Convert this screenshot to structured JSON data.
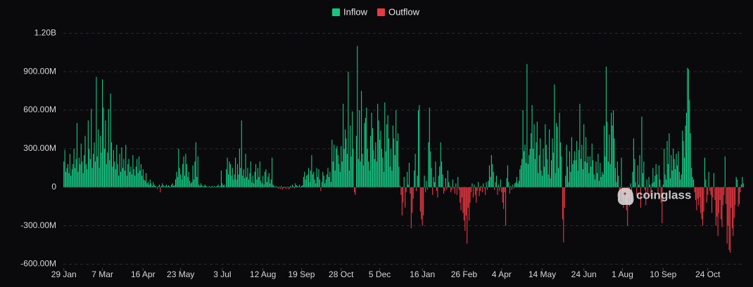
{
  "chart_data": {
    "type": "bar",
    "legend": [
      {
        "name": "Inflow",
        "color": "#16c784"
      },
      {
        "name": "Outflow",
        "color": "#ea3943"
      }
    ],
    "watermark": "coinglass",
    "ylim": [
      -630,
      1240
    ],
    "yticks": [
      {
        "value": -600,
        "label": "-600.00M"
      },
      {
        "value": -300,
        "label": "-300.00M"
      },
      0,
      {
        "value": 300,
        "label": "300.00M"
      },
      {
        "value": 600,
        "label": "600.00M"
      },
      {
        "value": 900,
        "label": "900.00M"
      },
      {
        "value": 1200,
        "label": "1.20B"
      }
    ],
    "grid": true,
    "xlim": [
      -0.5,
      669.5
    ],
    "xticks": [
      {
        "value": 0,
        "label": "29 Jan"
      },
      {
        "value": 38,
        "label": "7 Mar"
      },
      {
        "value": 78,
        "label": "16 Apr"
      },
      {
        "value": 115,
        "label": "23 May"
      },
      {
        "value": 156,
        "label": "3 Jul"
      },
      {
        "value": 196,
        "label": "12 Aug"
      },
      {
        "value": 234,
        "label": "19 Sep"
      },
      {
        "value": 273,
        "label": "28 Oct"
      },
      {
        "value": 311,
        "label": "5 Dec"
      },
      {
        "value": 353,
        "label": "16 Jan"
      },
      {
        "value": 394,
        "label": "26 Feb"
      },
      {
        "value": 431,
        "label": "4 Apr"
      },
      {
        "value": 471,
        "label": "14 May"
      },
      {
        "value": 512,
        "label": "24 Jun"
      },
      {
        "value": 550,
        "label": "1 Aug"
      },
      {
        "value": 590,
        "label": "10 Sep"
      },
      {
        "value": 634,
        "label": "24 Oct"
      }
    ],
    "values": [
      200,
      290,
      120,
      150,
      180,
      110,
      260,
      90,
      140,
      180,
      300,
      150,
      220,
      500,
      120,
      230,
      180,
      340,
      200,
      110,
      250,
      400,
      180,
      140,
      520,
      300,
      220,
      610,
      150,
      260,
      350,
      200,
      860,
      240,
      450,
      150,
      400,
      270,
      840,
      620,
      300,
      520,
      180,
      270,
      610,
      210,
      730,
      350,
      160,
      290,
      200,
      140,
      330,
      180,
      90,
      260,
      120,
      310,
      150,
      220,
      130,
      330,
      90,
      180,
      220,
      120,
      160,
      100,
      250,
      140,
      90,
      160,
      220,
      110,
      240,
      130,
      180,
      90,
      140,
      60,
      50,
      110,
      30,
      40,
      20,
      60,
      30,
      10,
      40,
      20,
      10,
      5,
      -15,
      8,
      20,
      -40,
      10,
      30,
      15,
      5,
      10,
      20,
      5,
      15,
      10,
      -5,
      20,
      30,
      10,
      15,
      60,
      120,
      80,
      300,
      150,
      100,
      60,
      180,
      240,
      90,
      260,
      180,
      80,
      120,
      50,
      30,
      40,
      170,
      60,
      200,
      350,
      80,
      240,
      20,
      10,
      30,
      15,
      5,
      10,
      20,
      10,
      5,
      0,
      10,
      -5,
      5,
      10,
      3,
      8,
      5,
      5,
      10,
      20,
      5,
      10,
      130,
      30,
      15,
      20,
      5,
      140,
      230,
      100,
      200,
      180,
      90,
      150,
      60,
      100,
      230,
      60,
      180,
      100,
      300,
      150,
      520,
      90,
      140,
      70,
      260,
      80,
      150,
      60,
      110,
      200,
      40,
      90,
      30,
      120,
      180,
      60,
      150,
      80,
      200,
      50,
      30,
      90,
      20,
      120,
      140,
      40,
      80,
      110,
      30,
      60,
      230,
      20,
      10,
      -5,
      10,
      -5,
      -10,
      5,
      -15,
      10,
      -20,
      -10,
      5,
      -8,
      -12,
      5,
      -10,
      -15,
      10,
      -5,
      20,
      10,
      -10,
      30,
      15,
      10,
      5,
      20,
      -5,
      10,
      15,
      80,
      120,
      60,
      90,
      100,
      150,
      40,
      130,
      250,
      100,
      120,
      60,
      30,
      150,
      80,
      140,
      60,
      -30,
      40,
      120,
      90,
      30,
      60,
      100,
      150,
      80,
      120,
      40,
      370,
      200,
      330,
      130,
      300,
      320,
      250,
      180,
      120,
      320,
      200,
      650,
      300,
      450,
      380,
      260,
      900,
      130,
      480,
      240,
      590,
      300,
      -40,
      -60,
      400,
      1100,
      220,
      600,
      200,
      750,
      260,
      170,
      500,
      540,
      620,
      300,
      200,
      130,
      400,
      580,
      460,
      290,
      220,
      350,
      200,
      650,
      520,
      370,
      440,
      300,
      230,
      120,
      660,
      280,
      490,
      560,
      380,
      160,
      300,
      130,
      480,
      380,
      250,
      600,
      360,
      420,
      160,
      10,
      -60,
      -220,
      -120,
      80,
      -160,
      -40,
      120,
      20,
      190,
      -50,
      -320,
      -200,
      -90,
      130,
      260,
      -30,
      90,
      600,
      640,
      -190,
      -250,
      -300,
      -220,
      90,
      -40,
      50,
      -20,
      350,
      620,
      280,
      150,
      -60,
      80,
      40,
      200,
      -30,
      -80,
      90,
      160,
      350,
      200,
      100,
      -50,
      -30,
      70,
      -20,
      130,
      40,
      10,
      -40,
      -20,
      60,
      -10,
      -50,
      30,
      -60,
      80,
      -20,
      -120,
      -180,
      -80,
      -200,
      -260,
      -340,
      -220,
      -440,
      -160,
      -260,
      -120,
      -40,
      30,
      -80,
      20,
      -60,
      -120,
      -30,
      40,
      -70,
      -30,
      10,
      -40,
      30,
      -10,
      -60,
      40,
      -20,
      50,
      170,
      80,
      250,
      180,
      120,
      -20,
      40,
      90,
      -60,
      20,
      -30,
      60,
      -40,
      -120,
      -170,
      -40,
      -300,
      70,
      170,
      40,
      -50,
      10,
      -20,
      20,
      -10,
      30,
      40,
      80,
      30,
      50,
      140,
      170,
      220,
      600,
      280,
      330,
      190,
      960,
      180,
      250,
      300,
      420,
      640,
      300,
      490,
      220,
      350,
      510,
      110,
      250,
      380,
      130,
      90,
      300,
      160,
      490,
      330,
      220,
      100,
      450,
      70,
      210,
      380,
      270,
      800,
      110,
      500,
      470,
      150,
      580,
      350,
      240,
      -250,
      -430,
      -160,
      90,
      330,
      160,
      40,
      280,
      120,
      390,
      180,
      210,
      280,
      210,
      360,
      130,
      290,
      650,
      220,
      330,
      140,
      490,
      200,
      390,
      190,
      240,
      110,
      240,
      160,
      340,
      210,
      100,
      60,
      200,
      110,
      260,
      50,
      190,
      80,
      120,
      100,
      480,
      240,
      940,
      510,
      200,
      410,
      180,
      580,
      480,
      600,
      380,
      150,
      40,
      200,
      90,
      -100,
      -20,
      230,
      -80,
      -160,
      -60,
      -130,
      -180,
      -300,
      -80,
      -150,
      30,
      -120,
      120,
      380,
      220,
      40,
      -60,
      170,
      20,
      250,
      -160,
      550,
      110,
      200,
      -20,
      -140,
      60,
      -40,
      80,
      20,
      -70,
      30,
      150,
      40,
      90,
      180,
      100,
      -40,
      170,
      60,
      -120,
      -280,
      20,
      300,
      100,
      60,
      360,
      180,
      420,
      70,
      250,
      130,
      300,
      220,
      140,
      260,
      170,
      280,
      120,
      60,
      100,
      440,
      360,
      230,
      480,
      580,
      930,
      920,
      680,
      420,
      150,
      80,
      60,
      -40,
      -100,
      -180,
      -90,
      -140,
      -80,
      -200,
      -250,
      -300,
      -190,
      230,
      60,
      -120,
      -60,
      120,
      -30,
      -60,
      -200,
      -80,
      110,
      -100,
      -300,
      -230,
      -380,
      -200,
      -100,
      -250,
      -310,
      -140,
      -60,
      240,
      -130,
      -440,
      -300,
      -490,
      -510,
      -160,
      -320,
      -380,
      -240,
      -140,
      80,
      60,
      -150,
      -130,
      -40,
      20,
      80,
      30
    ]
  }
}
